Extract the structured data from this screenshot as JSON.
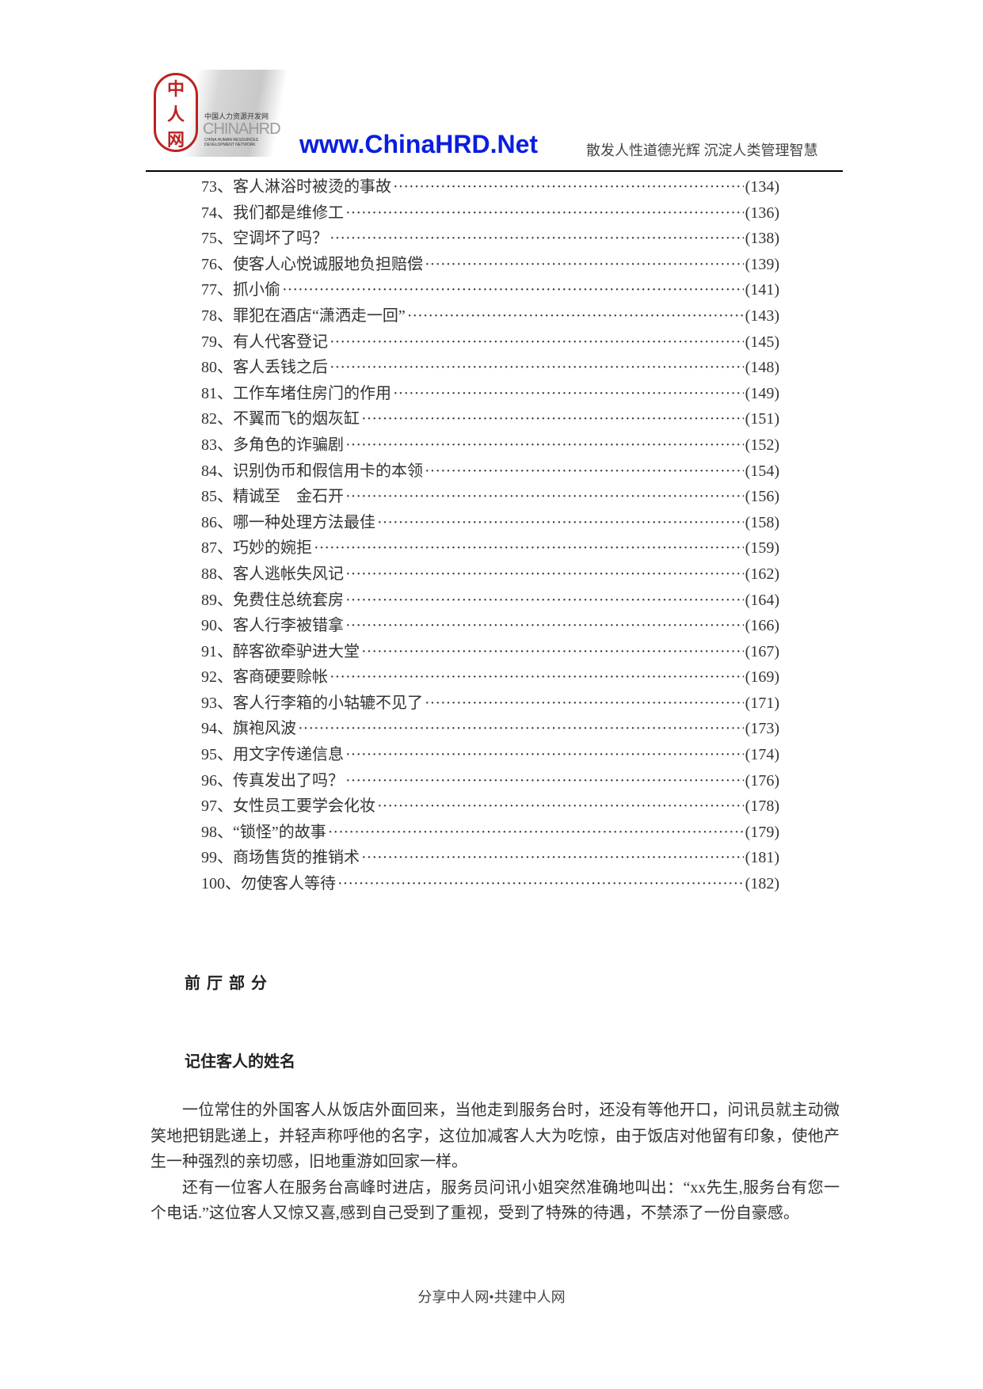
{
  "header": {
    "logo_seal_text": "中人网",
    "logo_cn": "中国人力资源开发网",
    "logo_en": "CHINAHRD",
    "logo_sub": "CHINA HUMAN RESOURCES DEVELOPMENT NETWORK",
    "site": "www.ChinaHRD.Net",
    "slogan": "散发人性道德光辉 沉淀人类管理智慧"
  },
  "toc": [
    {
      "title": "73、客人淋浴时被烫的事故",
      "page": "(134)"
    },
    {
      "title": "74、我们都是维修工",
      "page": "(136)"
    },
    {
      "title": "75、空调坏了吗？",
      "page": "(138)"
    },
    {
      "title": "76、使客人心悦诚服地负担赔偿",
      "page": "(139)"
    },
    {
      "title": "77、抓小偷",
      "page": "(141)"
    },
    {
      "title": "78、罪犯在酒店“潇洒走一回”",
      "page": "(143)"
    },
    {
      "title": "79、有人代客登记",
      "page": "(145)"
    },
    {
      "title": "80、客人丢钱之后",
      "page": "(148)"
    },
    {
      "title": "81、工作车堵住房门的作用",
      "page": "(149)"
    },
    {
      "title": "82、不翼而飞的烟灰缸",
      "page": "(151)"
    },
    {
      "title": "83、多角色的诈骗剧",
      "page": "(152)"
    },
    {
      "title": "84、识别伪币和假信用卡的本领",
      "page": "(154)"
    },
    {
      "title": "85、精诚至　金石开",
      "page": "(156)"
    },
    {
      "title": "86、哪一种处理方法最佳",
      "page": "(158)"
    },
    {
      "title": "87、巧妙的婉拒",
      "page": "(159)"
    },
    {
      "title": "88、客人逃帐失风记",
      "page": "(162)"
    },
    {
      "title": "89、免费住总统套房",
      "page": "(164)"
    },
    {
      "title": "90、客人行李被错拿",
      "page": "(166)"
    },
    {
      "title": "91、醉客欲牵驴进大堂",
      "page": "(167)"
    },
    {
      "title": "92、客商硬要赊帐",
      "page": "(169)"
    },
    {
      "title": "93、客人行李箱的小轱辘不见了",
      "page": "(171)"
    },
    {
      "title": "94、旗袍风波",
      "page": "(173)"
    },
    {
      "title": "95、用文字传递信息",
      "page": "(174)"
    },
    {
      "title": "96、传真发出了吗？",
      "page": "(176)"
    },
    {
      "title": "97、女性员工要学会化妆",
      "page": "(178)"
    },
    {
      "title": "98、“锁怪”的故事",
      "page": "(179)"
    },
    {
      "title": "99、商场售货的推销术",
      "page": "(181)"
    },
    {
      "title": "100、勿使客人等待",
      "page": "(182)"
    }
  ],
  "section_heading": "前厅部分",
  "article_title": "记住客人的姓名",
  "paragraphs": [
    "一位常住的外国客人从饭店外面回来，当他走到服务台时，还没有等他开口，问讯员就主动微笑地把钥匙递上，并轻声称呼他的名字，这位加减客人大为吃惊，由于饭店对他留有印象，使他产生一种强烈的亲切感，旧地重游如回家一样。",
    "还有一位客人在服务台高峰时进店，服务员问讯小姐突然准确地叫出：“xx先生,服务台有您一个电话.”这位客人又惊又喜,感到自己受到了重视，受到了特殊的待遇，不禁添了一份自豪感。"
  ],
  "footer": "分享中人网•共建中人网",
  "colors": {
    "site_link": "#0a1ee0",
    "seal": "#bb2222"
  }
}
